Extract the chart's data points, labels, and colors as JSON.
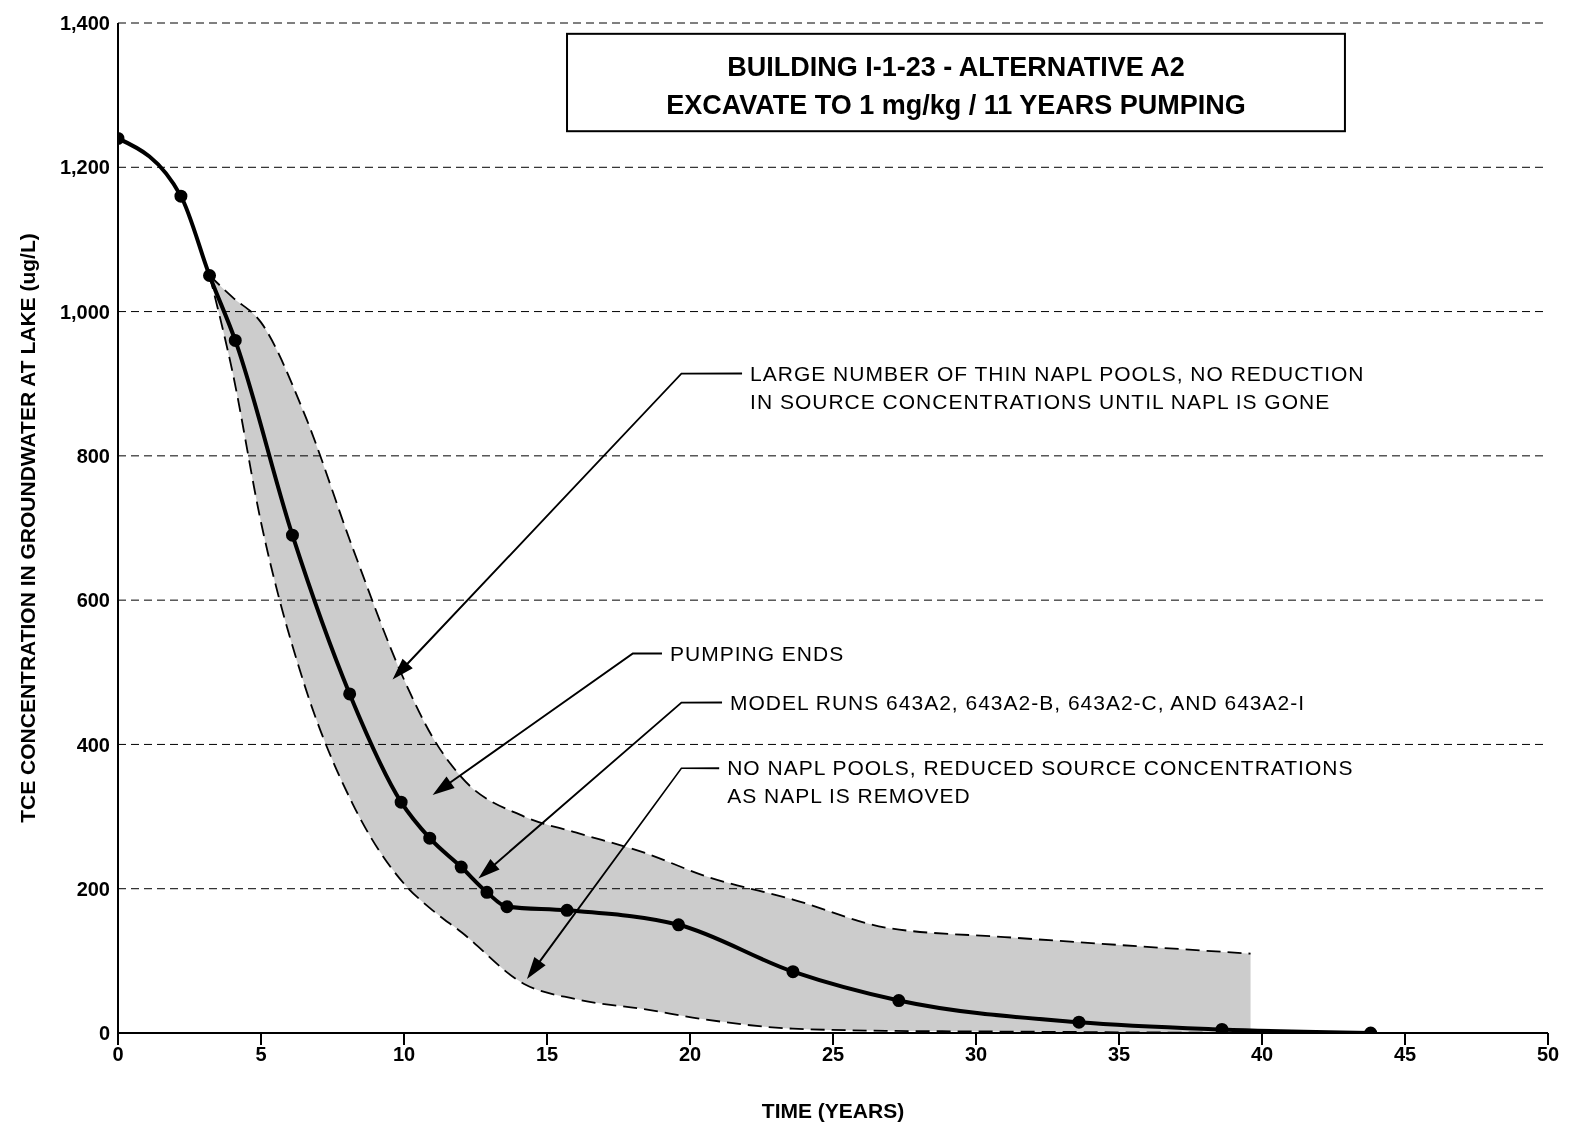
{
  "chart_data": {
    "type": "line",
    "title": "BUILDING I-1-23 - ALTERNATIVE A2",
    "subtitle": "EXCAVATE TO 1 mg/kg / 11 YEARS PUMPING",
    "xlabel": "TIME (YEARS)",
    "ylabel": "TCE CONCENTRATION IN GROUNDWATER AT LAKE (ug/L)",
    "xlim": [
      0,
      50
    ],
    "xticks": [
      0,
      5,
      10,
      15,
      20,
      25,
      30,
      35,
      40,
      45,
      50
    ],
    "ylim": [
      0,
      1400
    ],
    "yticks": [
      0,
      200,
      400,
      600,
      800,
      {
        "value": 1000,
        "label": "1,000"
      },
      {
        "value": 1200,
        "label": "1,200"
      },
      {
        "value": 1400,
        "label": "1,400"
      }
    ],
    "grid": "y",
    "legend": false,
    "series": [
      {
        "type": "line",
        "color": "#000000",
        "marker": "circle",
        "line_style": "solid",
        "x": [
          0,
          2.2,
          3.2,
          4.1,
          6.1,
          8.1,
          9.9,
          10.9,
          12,
          12.9,
          13.6,
          15.7,
          19.6,
          23.6,
          27.3,
          33.6,
          38.6,
          43.8
        ],
        "values": [
          1240,
          1160,
          1050,
          960,
          690,
          470,
          320,
          270,
          230,
          195,
          175,
          170,
          150,
          85,
          45,
          15,
          5,
          0
        ]
      },
      {
        "type": "line",
        "color": "#000000",
        "line_style": "dashed",
        "x": [
          3.2,
          4,
          5,
          6.5,
          8.2,
          10,
          11,
          12,
          14.2,
          16,
          18.4,
          20.5,
          23.6,
          27,
          31,
          35,
          39.6
        ],
        "values": [
          1050,
          1020,
          985,
          860,
          673,
          490,
          410,
          355,
          300,
          278,
          250,
          218,
          185,
          145,
          133,
          122,
          110
        ],
        "lower": [
          1050,
          917,
          708,
          485,
          318,
          207,
          170,
          140,
          68,
          47,
          33,
          19,
          6,
          3,
          2,
          1,
          0
        ],
        "upper": [
          1050,
          1020,
          985,
          860,
          673,
          490,
          410,
          355,
          300,
          278,
          250,
          218,
          185,
          145,
          133,
          122,
          110
        ]
      },
      {
        "type": "line",
        "color": "#000000",
        "line_style": "dashed",
        "x": [
          3.2,
          4,
          5,
          6.5,
          8.2,
          10,
          11,
          12,
          14.2,
          16,
          18.4,
          20.5,
          23.6,
          27,
          31,
          35,
          39.6
        ],
        "values": [
          1050,
          917,
          708,
          485,
          318,
          207,
          170,
          140,
          68,
          47,
          33,
          19,
          6,
          3,
          2,
          1,
          0
        ]
      }
    ],
    "annotations": [
      "LARGE NUMBER OF THIN NAPL POOLS, NO REDUCTION\nIN SOURCE CONCENTRATIONS UNTIL NAPL IS GONE",
      "PUMPING ENDS",
      "MODEL RUNS 643A2, 643A2-B, 643A2-C, AND 643A2-I",
      "NO NAPL POOLS, REDUCED SOURCE CONCENTRATIONS\nAS NAPL IS REMOVED"
    ]
  }
}
